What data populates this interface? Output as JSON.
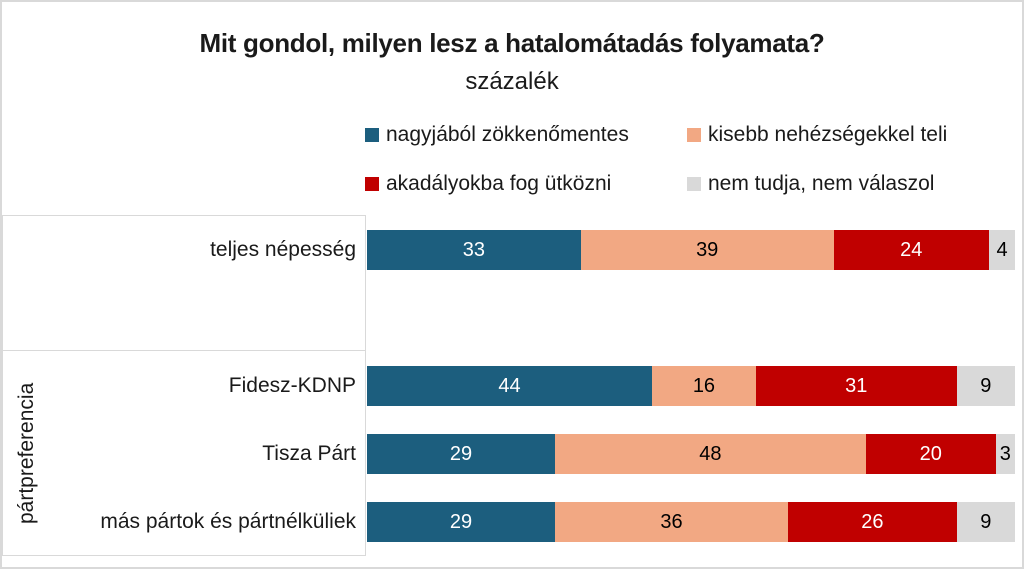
{
  "title": "Mit gondol, milyen lesz a hatalomátadás folyamata?",
  "subtitle": "százalék",
  "legend": [
    {
      "label": "nagyjából zökkenőmentes",
      "color": "#1C5E7E"
    },
    {
      "label": "kisebb nehézségekkel teli",
      "color": "#F2A883"
    },
    {
      "label": "akadályokba fog ütközni",
      "color": "#C00000"
    },
    {
      "label": "nem tudja, nem válaszol",
      "color": "#D9D9D9"
    }
  ],
  "chart_data": {
    "type": "bar",
    "orientation": "horizontal",
    "stacked": true,
    "title": "Mit gondol, milyen lesz a hatalomátadás folyamata?",
    "subtitle": "százalék",
    "unit": "percent",
    "xlim": [
      0,
      100
    ],
    "grid": false,
    "legend_position": "top",
    "categories": [
      "teljes népesség",
      "Fidesz-KDNP",
      "Tisza Párt",
      "más pártok és pártnélküliek"
    ],
    "groups": [
      {
        "label": "",
        "categories": [
          "teljes népesség"
        ]
      },
      {
        "label": "pártpreferencia",
        "categories": [
          "Fidesz-KDNP",
          "Tisza Párt",
          "más pártok és pártnélküliek"
        ]
      }
    ],
    "series": [
      {
        "name": "nagyjából zökkenőmentes",
        "color": "#1C5E7E",
        "label_color": "#FFFFFF",
        "values": [
          33,
          44,
          29,
          29
        ]
      },
      {
        "name": "kisebb nehézségekkel teli",
        "color": "#F2A883",
        "label_color": "#000000",
        "values": [
          39,
          16,
          48,
          36
        ]
      },
      {
        "name": "akadályokba fog ütközni",
        "color": "#C00000",
        "label_color": "#FFFFFF",
        "values": [
          24,
          31,
          20,
          26
        ]
      },
      {
        "name": "nem tudja, nem válaszol",
        "color": "#D9D9D9",
        "label_color": "#000000",
        "values": [
          4,
          9,
          3,
          9
        ]
      }
    ]
  }
}
